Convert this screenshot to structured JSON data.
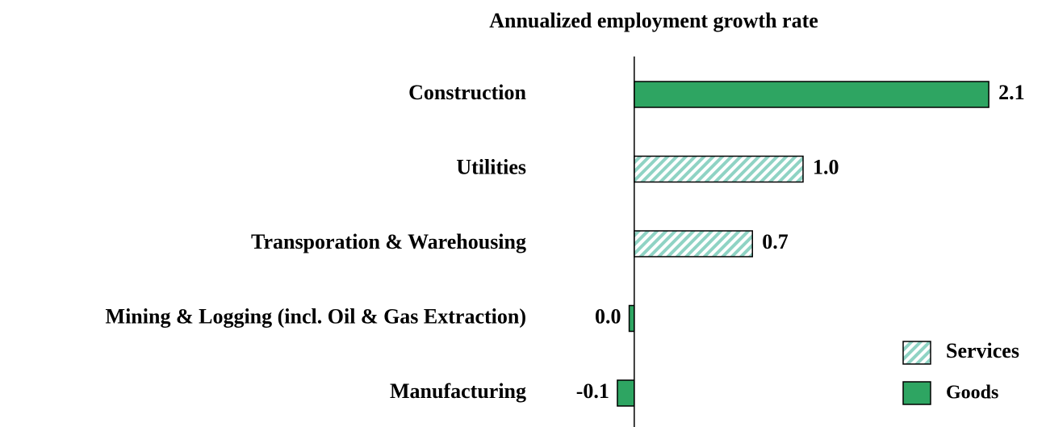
{
  "chart_data": {
    "type": "bar",
    "orientation": "horizontal",
    "title": "Annualized employment growth rate",
    "categories": [
      "Construction",
      "Utilities",
      "Transporation & Warehousing",
      "Mining & Logging (incl. Oil & Gas Extraction)",
      "Manufacturing"
    ],
    "series": [
      {
        "name": "Services",
        "color": "#8fd3c4",
        "pattern": "hatch",
        "values": [
          null,
          1.0,
          0.7,
          null,
          null
        ],
        "value_labels": [
          null,
          "1.0",
          "0.7",
          null,
          null
        ]
      },
      {
        "name": "Goods",
        "color": "#2ea562",
        "pattern": "solid",
        "values": [
          2.1,
          null,
          null,
          -0.03,
          -0.1
        ],
        "value_labels": [
          "2.1",
          null,
          null,
          "0.0",
          "-0.1"
        ]
      }
    ],
    "xlim": [
      -0.2,
      2.2
    ],
    "grid": false,
    "legend": "lower right"
  }
}
